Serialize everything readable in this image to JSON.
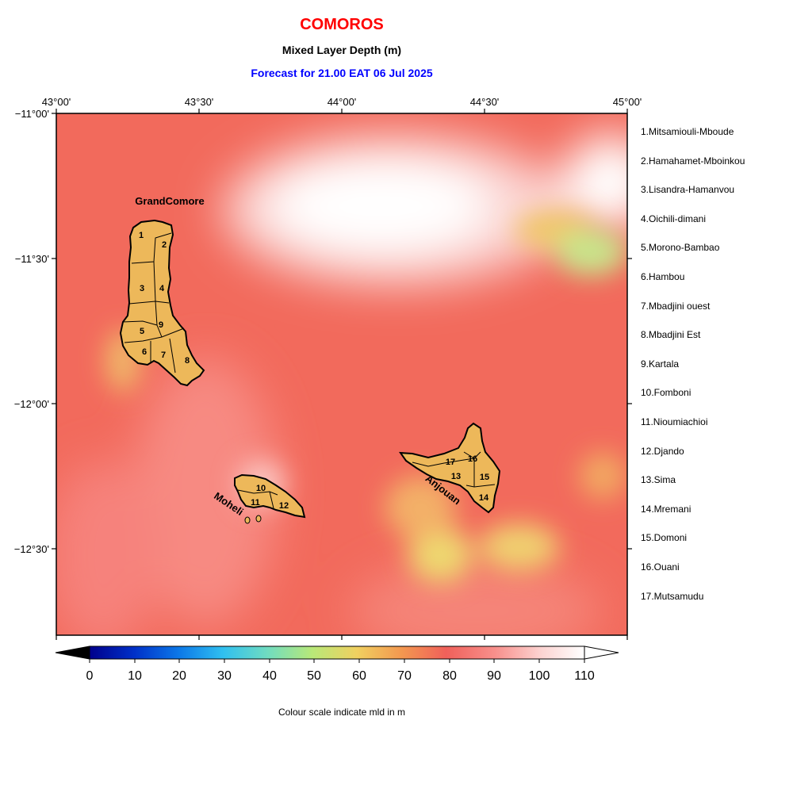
{
  "title": "COMOROS",
  "subtitle": "Mixed Layer Depth (m)",
  "forecast": "Forecast for  21.00 EAT 06 Jul 2025",
  "lon_ticks": [
    "43°00'",
    "43°30'",
    "44°00'",
    "44°30'",
    "45°00'"
  ],
  "lat_ticks": [
    "−11°00'",
    "−11°30'",
    "−12°00'",
    "−12°30'"
  ],
  "islands": {
    "grand_comore": "GrandComore",
    "moheli": "Moheli",
    "anjouan": "Anjouan"
  },
  "region_numbers": [
    "1",
    "2",
    "3",
    "4",
    "5",
    "6",
    "7",
    "8",
    "9",
    "10",
    "11",
    "12",
    "13",
    "14",
    "15",
    "16",
    "17"
  ],
  "regions": [
    "1.Mitsamiouli-Mboude",
    "2.Hamahamet-Mboinkou",
    "3.Lisandra-Hamanvou",
    "4.Oichili-dimani",
    "5.Morono-Bambao",
    "6.Hambou",
    "7.Mbadjini ouest",
    "8.Mbadjini Est",
    "9.Kartala",
    "10.Fomboni",
    "11.Nioumiachioi",
    "12.Djando",
    "13.Sima",
    "14.Mremani",
    "15.Domoni",
    "16.Ouani",
    "17.Mutsamudu"
  ],
  "colorbar": {
    "ticks": [
      "0",
      "10",
      "20",
      "30",
      "40",
      "50",
      "60",
      "70",
      "80",
      "90",
      "100",
      "110"
    ],
    "caption": "Colour scale indicate mld in m"
  },
  "colors": {
    "background_field": "#f26a5c",
    "land": "#edb85a",
    "title": "#ff0000",
    "forecast": "#0000ff"
  }
}
